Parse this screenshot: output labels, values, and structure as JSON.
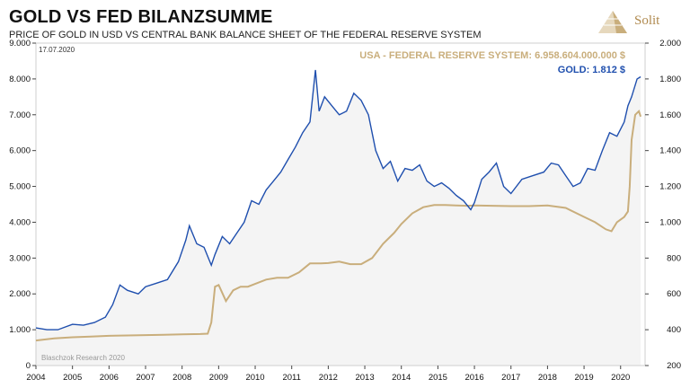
{
  "header": {
    "title": "GOLD VS FED BILANZSUMME",
    "subtitle": "PRICE OF GOLD IN USD VS CENTRAL BANK BALANCE SHEET OF THE FEDERAL RESERVE SYSTEM",
    "date": "17.07.2020"
  },
  "logo": {
    "text": "Solit",
    "icon": "pyramid-icon"
  },
  "footer": {
    "credit": "Blaschzok Research 2020"
  },
  "colors": {
    "gold": "#1f4fae",
    "fed": "#c9ae7c",
    "fill": "#f4f4f4",
    "grid": "#d8d8d8"
  },
  "chart_data": {
    "type": "line",
    "title": "GOLD VS FED BILANZSUMME",
    "x_ticks": [
      "2004",
      "2005",
      "2006",
      "2007",
      "2008",
      "2009",
      "2010",
      "2011",
      "2012",
      "2013",
      "2014",
      "2015",
      "2016",
      "2017",
      "2018",
      "2019",
      "2020"
    ],
    "y_left": {
      "ylim": [
        0,
        9000
      ],
      "ticks": [
        "0",
        "1.000",
        "2.000",
        "3.000",
        "4.000",
        "5.000",
        "6.000",
        "7.000",
        "8.000",
        "9.000"
      ]
    },
    "y_right": {
      "ylim": [
        200,
        2000
      ],
      "ticks": [
        "200",
        "400",
        "600",
        "800",
        "1.000",
        "1.200",
        "1.400",
        "1.600",
        "1.800",
        "2.000"
      ]
    },
    "grid": false,
    "legend_position": "top-right",
    "series": [
      {
        "name": "USA - FEDERAL RESERVE SYSTEM: 6.958.604.000.000 $",
        "axis": "left",
        "x": [
          2004.0,
          2004.5,
          2005.0,
          2005.5,
          2006.0,
          2006.5,
          2007.0,
          2007.5,
          2008.0,
          2008.5,
          2008.7,
          2008.8,
          2008.9,
          2009.0,
          2009.2,
          2009.4,
          2009.6,
          2009.8,
          2010.0,
          2010.3,
          2010.6,
          2010.9,
          2011.2,
          2011.5,
          2011.8,
          2012.0,
          2012.3,
          2012.6,
          2012.9,
          2013.2,
          2013.5,
          2013.8,
          2014.0,
          2014.3,
          2014.6,
          2014.9,
          2015.2,
          2015.5,
          2015.8,
          2016.0,
          2016.5,
          2017.0,
          2017.5,
          2018.0,
          2018.5,
          2019.0,
          2019.3,
          2019.6,
          2019.75,
          2019.9,
          2020.1,
          2020.2,
          2020.25,
          2020.3,
          2020.4,
          2020.5,
          2020.55
        ],
        "y": [
          700,
          760,
          790,
          810,
          830,
          840,
          850,
          860,
          870,
          880,
          890,
          1200,
          2200,
          2250,
          1800,
          2100,
          2200,
          2200,
          2280,
          2400,
          2450,
          2450,
          2600,
          2850,
          2850,
          2860,
          2900,
          2830,
          2830,
          3000,
          3400,
          3700,
          3950,
          4250,
          4420,
          4480,
          4480,
          4470,
          4460,
          4470,
          4460,
          4450,
          4450,
          4470,
          4400,
          4150,
          4000,
          3800,
          3750,
          4000,
          4150,
          4300,
          5000,
          6300,
          7000,
          7100,
          6950
        ]
      },
      {
        "name": "GOLD: 1.812 $",
        "axis": "right",
        "x": [
          2004.0,
          2004.3,
          2004.6,
          2005.0,
          2005.3,
          2005.6,
          2005.9,
          2006.1,
          2006.3,
          2006.5,
          2006.8,
          2007.0,
          2007.3,
          2007.6,
          2007.9,
          2008.1,
          2008.2,
          2008.4,
          2008.6,
          2008.8,
          2008.9,
          2009.1,
          2009.3,
          2009.5,
          2009.7,
          2009.9,
          2010.1,
          2010.3,
          2010.5,
          2010.7,
          2010.9,
          2011.1,
          2011.3,
          2011.5,
          2011.65,
          2011.75,
          2011.9,
          2012.1,
          2012.3,
          2012.5,
          2012.7,
          2012.9,
          2013.1,
          2013.3,
          2013.5,
          2013.7,
          2013.9,
          2014.1,
          2014.3,
          2014.5,
          2014.7,
          2014.9,
          2015.1,
          2015.3,
          2015.5,
          2015.7,
          2015.9,
          2016.0,
          2016.2,
          2016.4,
          2016.6,
          2016.8,
          2017.0,
          2017.3,
          2017.6,
          2017.9,
          2018.1,
          2018.3,
          2018.5,
          2018.7,
          2018.9,
          2019.1,
          2019.3,
          2019.5,
          2019.7,
          2019.9,
          2020.1,
          2020.2,
          2020.3,
          2020.45,
          2020.55
        ],
        "y": [
          410,
          400,
          400,
          430,
          425,
          440,
          470,
          540,
          650,
          620,
          600,
          640,
          660,
          680,
          780,
          900,
          980,
          880,
          860,
          760,
          820,
          920,
          880,
          940,
          1000,
          1120,
          1100,
          1180,
          1230,
          1280,
          1350,
          1420,
          1500,
          1560,
          1850,
          1620,
          1700,
          1650,
          1600,
          1620,
          1720,
          1680,
          1600,
          1400,
          1300,
          1340,
          1230,
          1300,
          1290,
          1320,
          1230,
          1200,
          1220,
          1190,
          1150,
          1120,
          1070,
          1110,
          1240,
          1280,
          1330,
          1200,
          1160,
          1240,
          1260,
          1280,
          1330,
          1320,
          1260,
          1200,
          1220,
          1300,
          1290,
          1400,
          1500,
          1480,
          1560,
          1650,
          1700,
          1800,
          1812
        ]
      }
    ]
  }
}
